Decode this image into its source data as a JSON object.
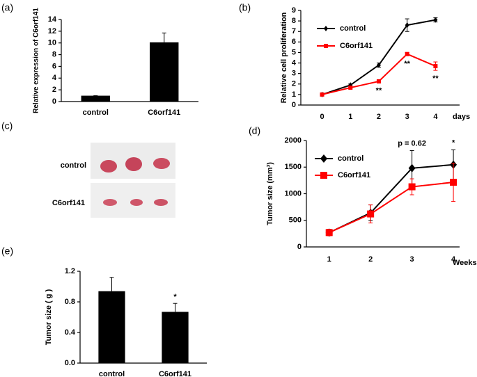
{
  "chart_data": [
    {
      "type": "bar",
      "label": "(a)",
      "ylabel": "Relative expression of C6orf141",
      "categories": [
        "control",
        "C6orf141"
      ],
      "values": [
        1,
        10.1
      ],
      "errors": [
        0,
        1.6
      ],
      "color": "#000000",
      "ylim": [
        0,
        14
      ],
      "yticks": [
        0,
        2,
        4,
        6,
        8,
        10,
        12,
        14
      ]
    },
    {
      "type": "line",
      "label": "(b)",
      "ylabel": "Relative cell proliferation",
      "xlabel": "days",
      "x": [
        0,
        1,
        2,
        3,
        4
      ],
      "xlim": [
        -0.75,
        4.85
      ],
      "xticks": [
        0,
        1,
        2,
        3,
        4
      ],
      "ylim": [
        0,
        9
      ],
      "yticks": [
        0,
        1,
        2,
        3,
        4,
        5,
        6,
        7,
        8,
        9
      ],
      "series": [
        {
          "name": "control",
          "color": "#000000",
          "marker": "diamond",
          "values": [
            1,
            1.9,
            3.8,
            7.6,
            8.1
          ],
          "errors": [
            0.05,
            0.1,
            0.2,
            0.6,
            0.2
          ]
        },
        {
          "name": "C6orf141",
          "color": "#ff0000",
          "marker": "square",
          "values": [
            1,
            1.65,
            2.25,
            4.85,
            3.7
          ],
          "errors": [
            0.05,
            0.05,
            0.1,
            0.15,
            0.4
          ]
        }
      ],
      "annotations": [
        {
          "text": "**",
          "x": 2
        },
        {
          "text": "**",
          "x": 3
        },
        {
          "text": "**",
          "x": 4
        }
      ]
    },
    {
      "type": "line",
      "label": "(d)",
      "ylabel": "Tumor size (mm³)",
      "xlabel": "Weeks",
      "x": [
        1,
        2,
        3,
        4
      ],
      "xlim": [
        0.45,
        4.15
      ],
      "xticks": [
        1,
        2,
        3,
        4
      ],
      "ylim": [
        0,
        2000
      ],
      "yticks": [
        0,
        500,
        1000,
        1500,
        2000
      ],
      "series": [
        {
          "name": "control",
          "color": "#000000",
          "marker": "diamond",
          "values": [
            270,
            640,
            1480,
            1545
          ],
          "errors": [
            60,
            150,
            330,
            280
          ]
        },
        {
          "name": "C6orf141",
          "color": "#ff0000",
          "marker": "square",
          "values": [
            270,
            620,
            1130,
            1215
          ],
          "errors": [
            60,
            170,
            150,
            360
          ]
        }
      ],
      "annotations": [
        {
          "text": "p = 0.62",
          "x": 3
        },
        {
          "text": "*",
          "x": 4
        }
      ]
    },
    {
      "type": "bar",
      "label": "(e)",
      "ylabel": "Tumor size ( g )",
      "categories": [
        "control",
        "C6orf141"
      ],
      "values": [
        0.94,
        0.67
      ],
      "errors": [
        0.18,
        0.11
      ],
      "color": "#000000",
      "ylim": [
        0,
        1.2
      ],
      "yticks": [
        {
          "value": 0,
          "label": "0.0"
        },
        0.4,
        0.8,
        1.2
      ],
      "annotations": [
        {
          "text": "*",
          "category": "C6orf141"
        }
      ]
    }
  ],
  "photo": {
    "label": "(c)",
    "rows": [
      "control",
      "C6orf141"
    ]
  }
}
